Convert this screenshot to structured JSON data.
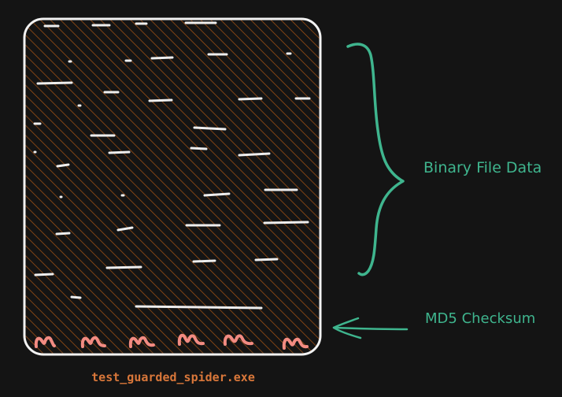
{
  "labels": {
    "binary_file_data": "Binary File Data",
    "md5_checksum": "MD5 Checksum",
    "filename": "test_guarded_spider.exe"
  },
  "colors": {
    "background": "#141414",
    "file_outline": "#f2f2f2",
    "file_hatch": "#9a4e14",
    "data_dash": "#eeeeee",
    "checksum_glyph": "#f28b82",
    "annotation": "#3fb58e",
    "filename": "#d9773a"
  },
  "icons": {
    "checksum_glyph": "squiggle-m-icon",
    "brace": "curly-brace-icon",
    "arrow": "left-arrow-icon"
  }
}
